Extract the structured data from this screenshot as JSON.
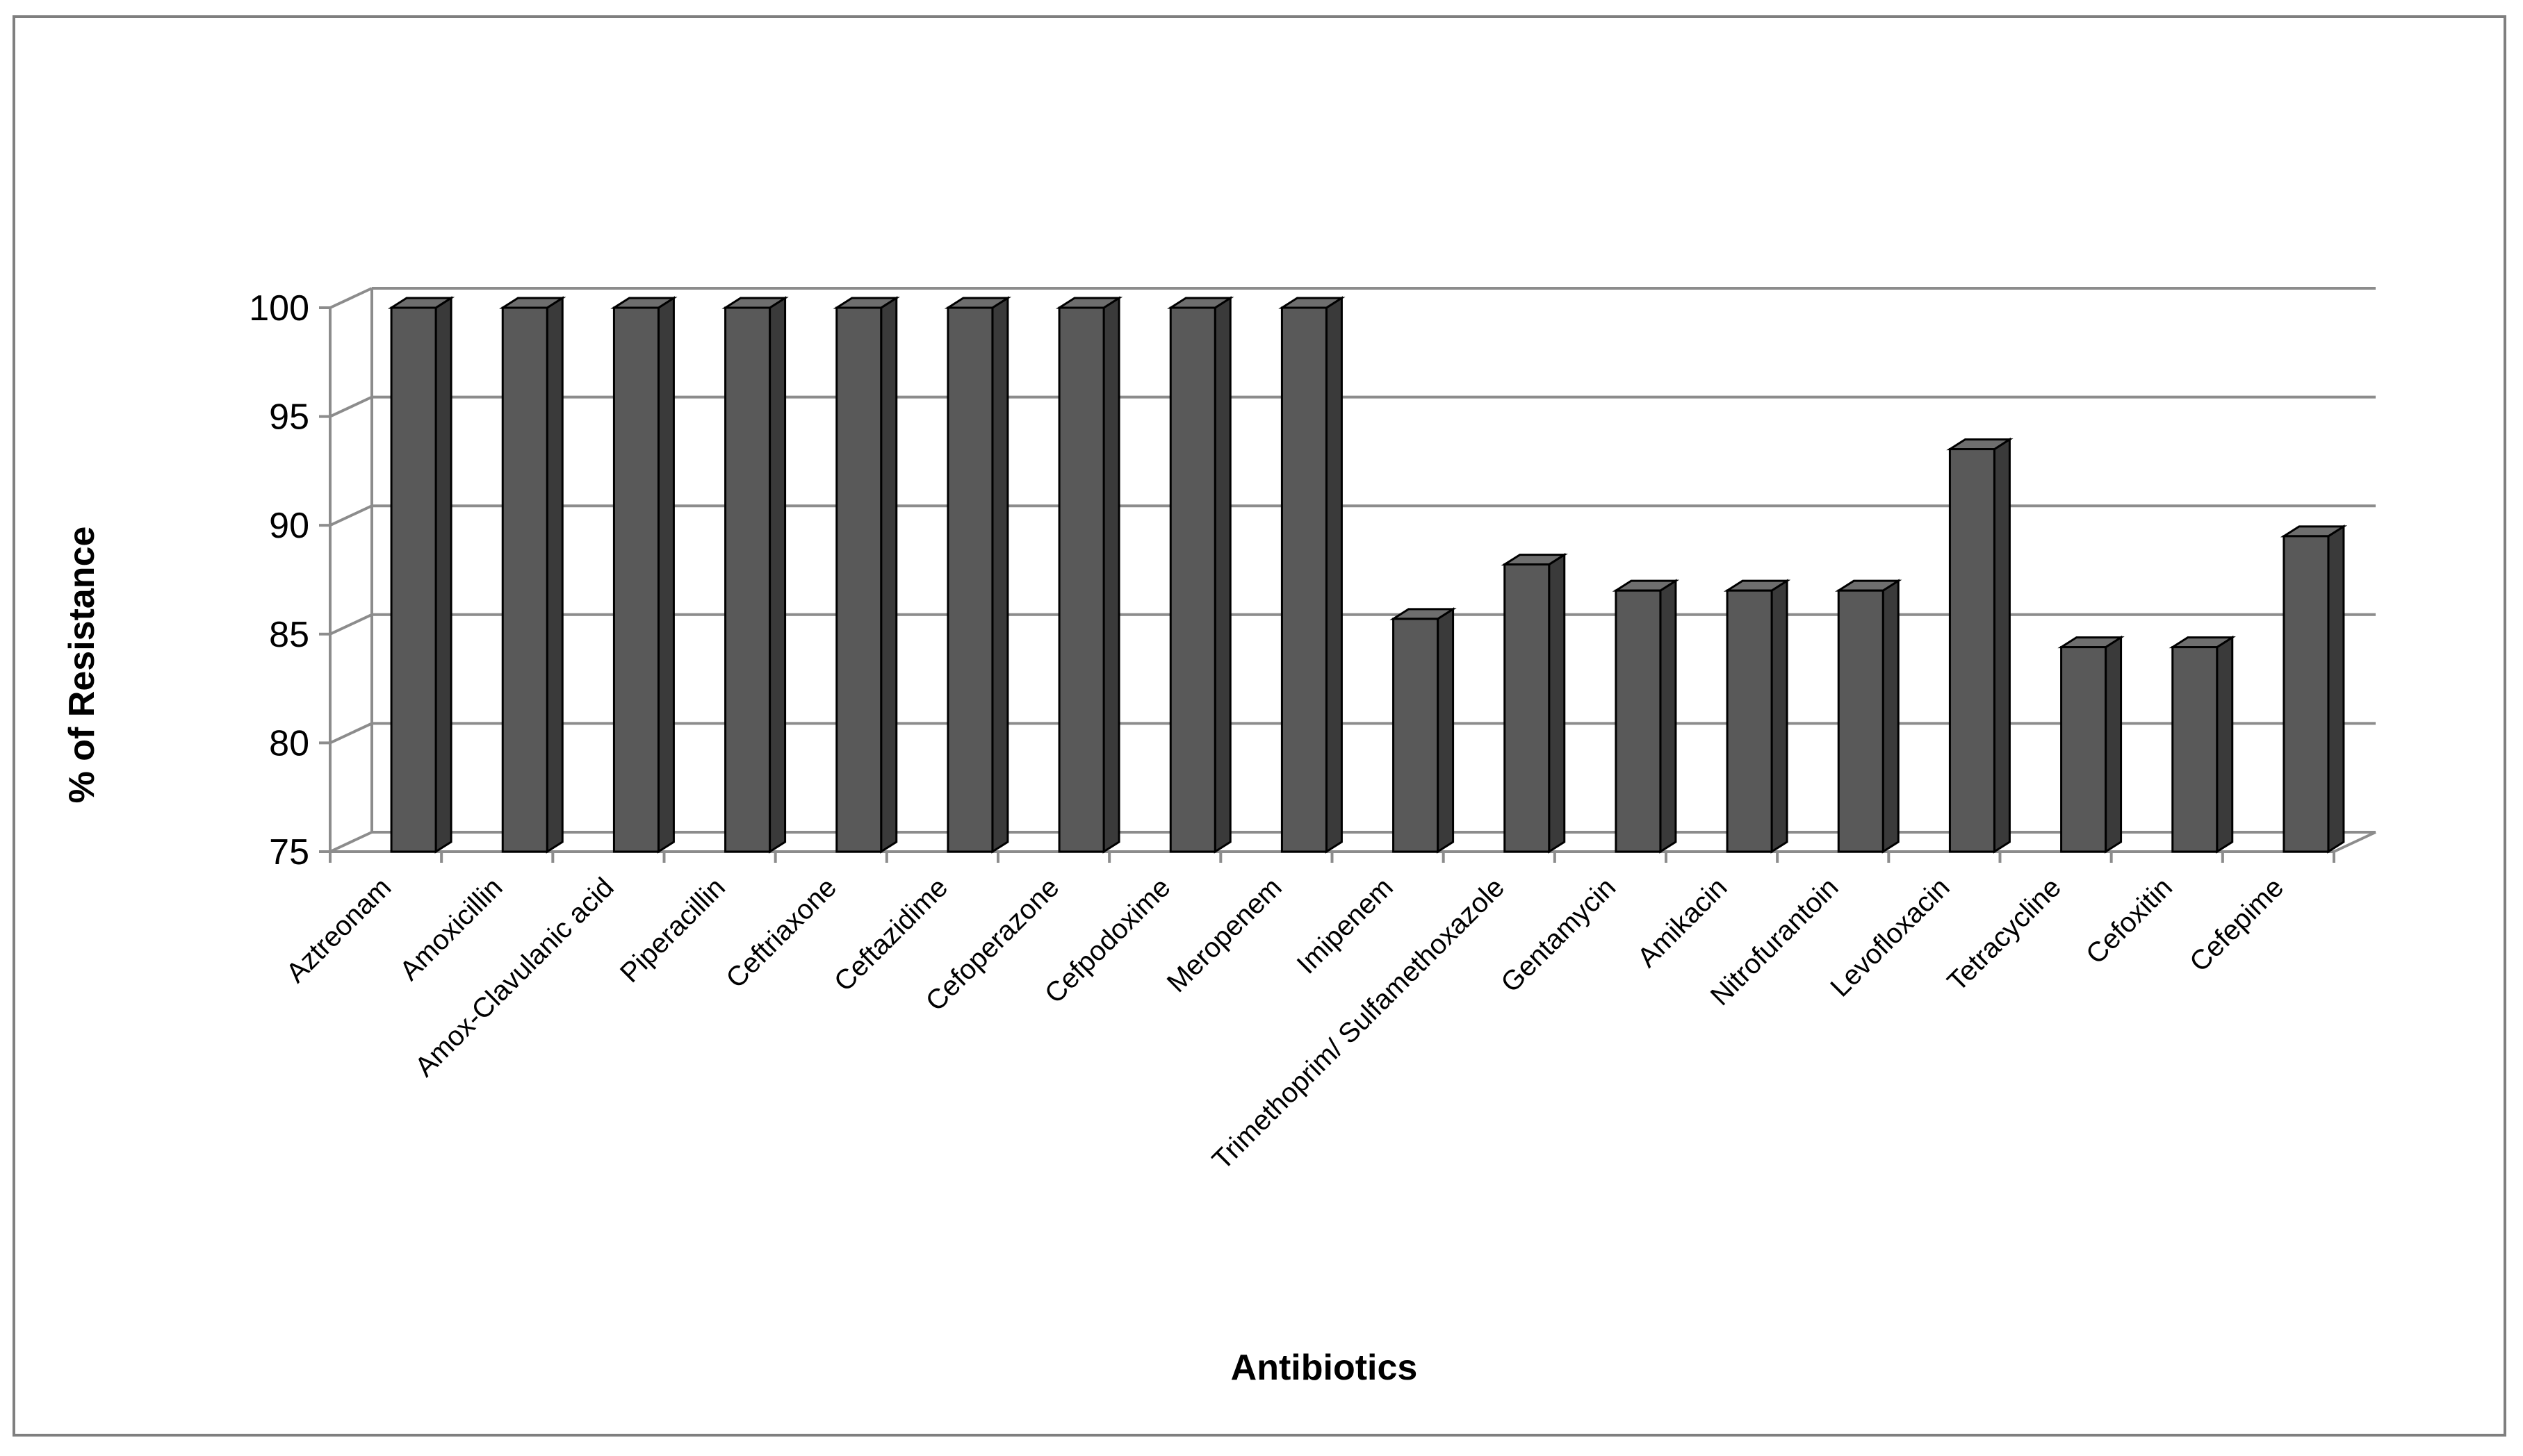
{
  "chart_data": {
    "type": "bar",
    "title": "",
    "xlabel": "Antibiotics",
    "ylabel": "% of Resistance",
    "ylim": [
      75,
      100
    ],
    "yticks": [
      75,
      80,
      85,
      90,
      95,
      100
    ],
    "grid": true,
    "style": "3d-column",
    "bar_color": "#595959",
    "categories": [
      "Aztreonam",
      "Amoxicillin",
      "Amox-Clavulanic acid",
      "Piperacillin",
      "Ceftriaxone",
      "Ceftazidime",
      "Cefoperazone",
      "Cefpodoxime",
      "Meropenem",
      "Imipenem",
      "Trimethoprim/ Sulfamethoxazole",
      "Gentamycin",
      "Amikacin",
      "Nitrofurantoin",
      "Levofloxacin",
      "Tetracycline",
      "Cefoxitin",
      "Cefepime"
    ],
    "values": [
      100,
      100,
      100,
      100,
      100,
      100,
      100,
      100,
      100,
      85.7,
      88.2,
      87,
      87,
      87,
      93.5,
      84.4,
      84.4,
      89.5
    ]
  }
}
